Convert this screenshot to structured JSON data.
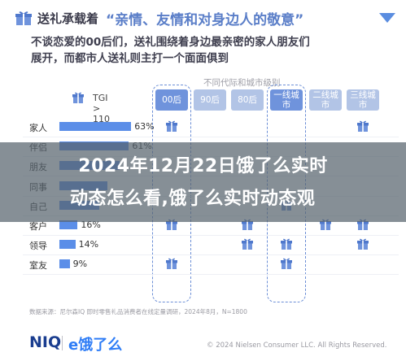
{
  "header": {
    "label": "送礼承载着",
    "quote": "“亲情、友情和对身边人的敬意”",
    "accent_color": "#5a7ec8"
  },
  "intro": {
    "line1": "不谈恋爱的00后们，送礼围绕着身边最亲密的家人朋友们",
    "line2": "展开，而都市人送礼则主打一个面面俱到"
  },
  "subtitle": "不同代际和城市级别",
  "overlay": {
    "line1": "2024年12月22日饿了么实时",
    "line2": "动态怎么看,饿了么实时动态观"
  },
  "footer": {
    "source": "数据来源：尼尔森IQ 即时零售礼品消费者在线定量调研，2024年8月，N=1800",
    "logo_niq": "NIQ",
    "logo_ele": "e饿了么",
    "copyright": "© 2024 Nielsen Consumer LLC. All Rights Reserved."
  },
  "chart_data": {
    "type": "bar",
    "metric_label": "TGI > 110",
    "categories": [
      "家人",
      "伴侣",
      "朋友",
      "同事",
      "自己",
      "客户",
      "领导",
      "室友"
    ],
    "values": [
      63,
      61,
      53,
      42,
      35,
      16,
      14,
      9
    ],
    "value_labels": [
      "63%",
      "61%",
      "",
      "",
      "",
      "16%",
      "14%",
      "9%"
    ],
    "xlim": [
      0,
      100
    ],
    "bar_color": "#5b8ee8",
    "columns": [
      "00后",
      "90后",
      "80后",
      "一线城市",
      "二线城市",
      "三线城市"
    ],
    "column_header_colors": [
      "#6f93dc",
      "#b2c4e6",
      "#b2c4e6",
      "#6f93dc",
      "#b2c4e6",
      "#b2c4e6"
    ],
    "highlighted_columns": [
      "00后",
      "一线城市"
    ],
    "tgi_matrix": [
      [
        true,
        false,
        false,
        false,
        false,
        true
      ],
      [
        false,
        false,
        false,
        false,
        false,
        false
      ],
      [
        false,
        false,
        false,
        false,
        false,
        false
      ],
      [
        false,
        false,
        false,
        false,
        false,
        false
      ],
      [
        false,
        false,
        false,
        true,
        false,
        false
      ],
      [
        true,
        false,
        true,
        false,
        true,
        true
      ],
      [
        false,
        false,
        true,
        true,
        false,
        true
      ],
      [
        true,
        false,
        false,
        true,
        false,
        false
      ]
    ]
  }
}
